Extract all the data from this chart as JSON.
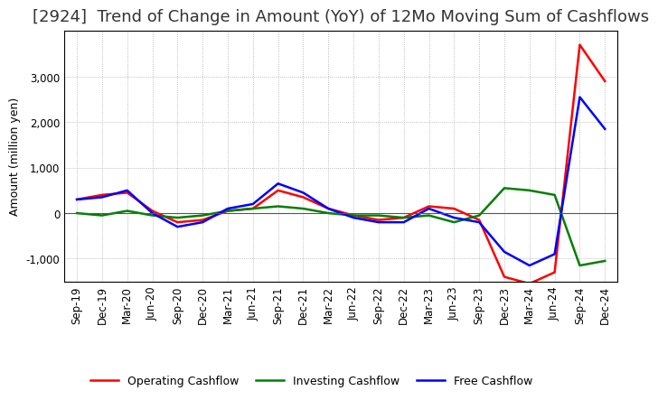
{
  "title": "[2924]  Trend of Change in Amount (YoY) of 12Mo Moving Sum of Cashflows",
  "ylabel": "Amount (million yen)",
  "x_labels": [
    "Sep-19",
    "Dec-19",
    "Mar-20",
    "Jun-20",
    "Sep-20",
    "Dec-20",
    "Mar-21",
    "Jun-21",
    "Sep-21",
    "Dec-21",
    "Mar-22",
    "Jun-22",
    "Sep-22",
    "Dec-22",
    "Mar-23",
    "Jun-23",
    "Sep-23",
    "Dec-23",
    "Mar-24",
    "Jun-24",
    "Sep-24",
    "Dec-24"
  ],
  "operating": [
    300,
    400,
    450,
    50,
    -200,
    -150,
    50,
    100,
    500,
    350,
    100,
    -50,
    -150,
    -100,
    150,
    100,
    -150,
    -1400,
    -1550,
    -1300,
    3700,
    2900
  ],
  "investing": [
    0,
    -50,
    50,
    -50,
    -100,
    -50,
    50,
    100,
    150,
    100,
    0,
    -50,
    -50,
    -100,
    -50,
    -200,
    -50,
    550,
    500,
    400,
    -1150,
    -1050
  ],
  "free": [
    300,
    350,
    500,
    0,
    -300,
    -200,
    100,
    200,
    650,
    450,
    100,
    -100,
    -200,
    -200,
    100,
    -100,
    -200,
    -850,
    -1150,
    -900,
    2550,
    1850
  ],
  "operating_color": "#ff0000",
  "investing_color": "#008000",
  "free_color": "#0000ff",
  "ylim": [
    -1500,
    4000
  ],
  "yticks": [
    -1000,
    0,
    1000,
    2000,
    3000
  ],
  "background_color": "#ffffff",
  "grid_color": "#aaaaaa",
  "title_fontsize": 13,
  "label_fontsize": 9,
  "tick_fontsize": 8.5,
  "linewidth": 1.8
}
